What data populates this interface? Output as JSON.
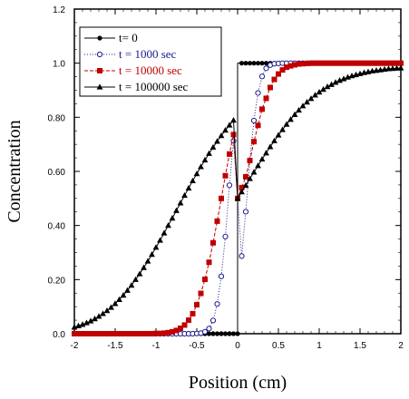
{
  "chart_data": {
    "type": "scatter",
    "title": "",
    "xlabel": "Position (cm)",
    "ylabel": "Concentration",
    "xlim": [
      -2,
      2
    ],
    "ylim": [
      0,
      1.2
    ],
    "xticks": [
      {
        "value": -2,
        "label": "-2"
      },
      {
        "value": -1.5,
        "label": "-1.5"
      },
      {
        "value": -1,
        "label": "-1"
      },
      {
        "value": -0.5,
        "label": "-0.5"
      },
      {
        "value": 0,
        "label": "0"
      },
      {
        "value": 0.5,
        "label": "0.5"
      },
      {
        "value": 1,
        "label": "1"
      },
      {
        "value": 1.5,
        "label": "1.5"
      },
      {
        "value": 2,
        "label": "2"
      }
    ],
    "yticks": [
      {
        "value": 0,
        "label": "0.0"
      },
      {
        "value": 0.2,
        "label": "0.20"
      },
      {
        "value": 0.4,
        "label": "0.40"
      },
      {
        "value": 0.6,
        "label": "0.60"
      },
      {
        "value": 0.8,
        "label": "0.80"
      },
      {
        "value": 1.0,
        "label": "1.0"
      },
      {
        "value": 1.2,
        "label": "1.2"
      }
    ],
    "grid": false,
    "legend_position": "top-left",
    "x": [
      -2.0,
      -1.95,
      -1.9,
      -1.85,
      -1.8,
      -1.75,
      -1.7,
      -1.65,
      -1.6,
      -1.55,
      -1.5,
      -1.45,
      -1.4,
      -1.35,
      -1.3,
      -1.25,
      -1.2,
      -1.15,
      -1.1,
      -1.05,
      -1.0,
      -0.95,
      -0.9,
      -0.85,
      -0.8,
      -0.75,
      -0.7,
      -0.65,
      -0.6,
      -0.55,
      -0.5,
      -0.45,
      -0.4,
      -0.35,
      -0.3,
      -0.25,
      -0.2,
      -0.15,
      -0.1,
      -0.05,
      0.0,
      0.05,
      0.1,
      0.15,
      0.2,
      0.25,
      0.3,
      0.35,
      0.4,
      0.45,
      0.5,
      0.55,
      0.6,
      0.65,
      0.7,
      0.75,
      0.8,
      0.85,
      0.9,
      0.95,
      1.0,
      1.05,
      1.1,
      1.15,
      1.2,
      1.25,
      1.3,
      1.35,
      1.4,
      1.45,
      1.5,
      1.55,
      1.6,
      1.65,
      1.7,
      1.75,
      1.8,
      1.85,
      1.9,
      1.95,
      2.0
    ],
    "series": [
      {
        "name": "t= 0",
        "color": "#000000",
        "marker": "circle",
        "line": "solid",
        "values": [
          0,
          0,
          0,
          0,
          0,
          0,
          0,
          0,
          0,
          0,
          0,
          0,
          0,
          0,
          0,
          0,
          0,
          0,
          0,
          0,
          0,
          0,
          0,
          0,
          0,
          0,
          0,
          0,
          0,
          0,
          0,
          0,
          0,
          0,
          0,
          0,
          0,
          0,
          0,
          0,
          0,
          1,
          1,
          1,
          1,
          1,
          1,
          1,
          1,
          1,
          1,
          1,
          1,
          1,
          1,
          1,
          1,
          1,
          1,
          1,
          1,
          1,
          1,
          1,
          1,
          1,
          1,
          1,
          1,
          1,
          1,
          1,
          1,
          1,
          1,
          1,
          1,
          1,
          1,
          1,
          1
        ]
      },
      {
        "name": "t = 1000 sec",
        "color": "#1a1a8c",
        "marker": "open-circle",
        "line": "dotted",
        "values": [
          0,
          0,
          0,
          0,
          0,
          0,
          0,
          0,
          0,
          0,
          0,
          0,
          0,
          0,
          0,
          0,
          0,
          0,
          0,
          0,
          0,
          0,
          0,
          0,
          0,
          0,
          0,
          0,
          0,
          0,
          0.001,
          0.002,
          0.007,
          0.019,
          0.049,
          0.11,
          0.212,
          0.359,
          0.549,
          0.713,
          0.5,
          0.287,
          0.451,
          0.641,
          0.788,
          0.89,
          0.951,
          0.981,
          0.993,
          0.998,
          0.999,
          1,
          1,
          1,
          1,
          1,
          1,
          1,
          1,
          1,
          1,
          1,
          1,
          1,
          1,
          1,
          1,
          1,
          1,
          1,
          1,
          1,
          1,
          1,
          1,
          1,
          1,
          1,
          1,
          1,
          1
        ]
      },
      {
        "name": "t = 10000 sec",
        "color": "#c00000",
        "marker": "square",
        "line": "dashed",
        "values": [
          0,
          0,
          0,
          0,
          0,
          0,
          0,
          0,
          0,
          0,
          0,
          0,
          0,
          0,
          0,
          0,
          0,
          0,
          0,
          0,
          0.001,
          0.001,
          0.002,
          0.004,
          0.007,
          0.012,
          0.02,
          0.032,
          0.05,
          0.074,
          0.107,
          0.149,
          0.201,
          0.264,
          0.336,
          0.416,
          0.5,
          0.584,
          0.664,
          0.736,
          0.5,
          0.54,
          0.58,
          0.64,
          0.71,
          0.77,
          0.83,
          0.87,
          0.91,
          0.94,
          0.96,
          0.975,
          0.985,
          0.99,
          0.994,
          0.997,
          0.998,
          0.999,
          1,
          1,
          1,
          1,
          1,
          1,
          1,
          1,
          1,
          1,
          1,
          1,
          1,
          1,
          1,
          1,
          1,
          1,
          1,
          1,
          1,
          1,
          1
        ]
      },
      {
        "name": "t = 100000 sec",
        "color": "#000000",
        "marker": "triangle",
        "line": "solid",
        "values": [
          0.024,
          0.029,
          0.034,
          0.04,
          0.047,
          0.055,
          0.064,
          0.074,
          0.085,
          0.097,
          0.111,
          0.126,
          0.142,
          0.16,
          0.179,
          0.2,
          0.221,
          0.244,
          0.268,
          0.293,
          0.319,
          0.345,
          0.372,
          0.4,
          0.427,
          0.455,
          0.483,
          0.511,
          0.538,
          0.565,
          0.591,
          0.617,
          0.642,
          0.666,
          0.689,
          0.711,
          0.732,
          0.752,
          0.771,
          0.789,
          0.5,
          0.524,
          0.548,
          0.573,
          0.597,
          0.621,
          0.645,
          0.668,
          0.691,
          0.713,
          0.734,
          0.754,
          0.774,
          0.792,
          0.81,
          0.826,
          0.842,
          0.856,
          0.869,
          0.882,
          0.893,
          0.903,
          0.913,
          0.921,
          0.929,
          0.936,
          0.942,
          0.948,
          0.953,
          0.957,
          0.961,
          0.965,
          0.968,
          0.971,
          0.973,
          0.975,
          0.977,
          0.979,
          0.98,
          0.981,
          0.982
        ]
      }
    ]
  }
}
